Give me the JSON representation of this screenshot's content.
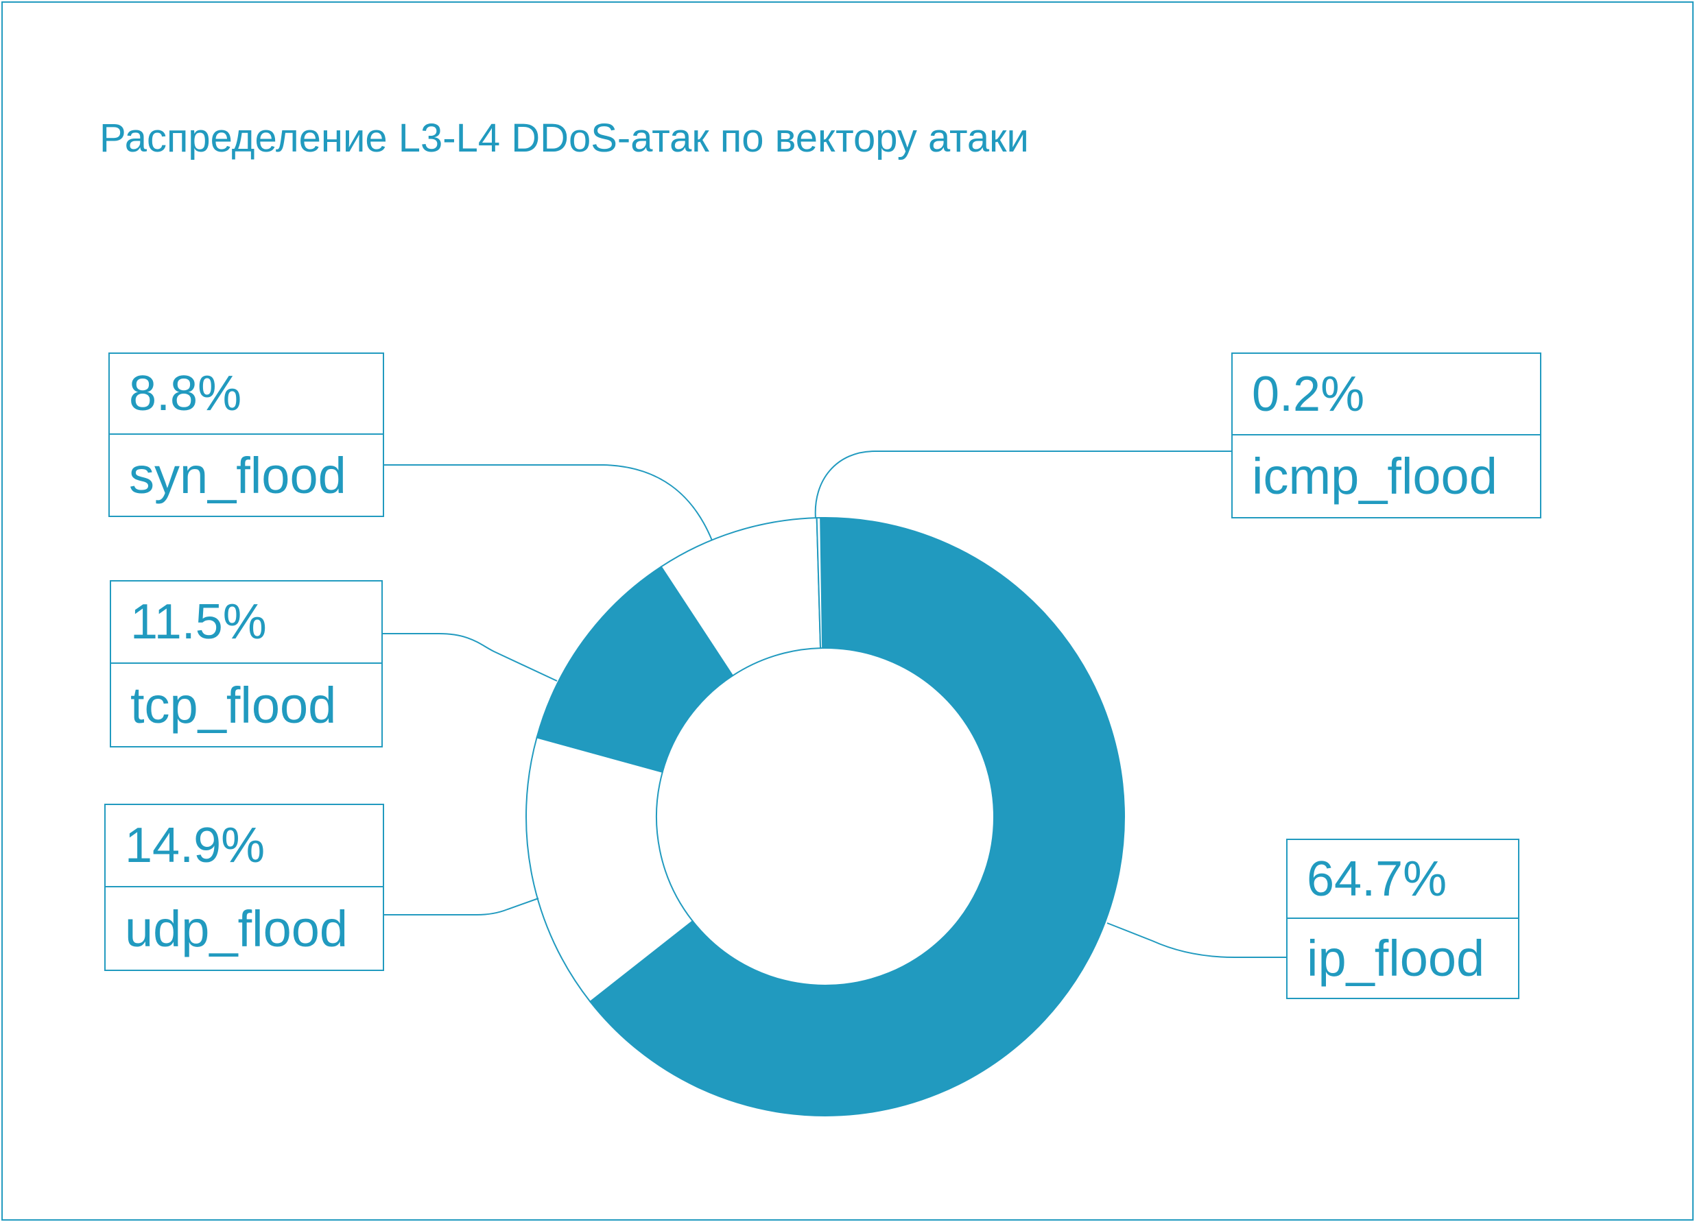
{
  "chart_data": {
    "type": "pie",
    "title": "Распределение L3-L4 DDoS-атак по вектору атаки",
    "categories": [
      "ip_flood",
      "udp_flood",
      "tcp_flood",
      "syn_flood",
      "icmp_flood"
    ],
    "values": [
      64.7,
      14.9,
      11.5,
      8.8,
      0.2
    ],
    "value_labels": [
      "64.7%",
      "14.9%",
      "11.5%",
      "8.8%",
      "0.2%"
    ],
    "filled": [
      true,
      false,
      true,
      false,
      false
    ],
    "donut": true,
    "colors": {
      "accent": "#219ABF",
      "background": "#FFFFFF"
    },
    "legend": "callouts"
  }
}
